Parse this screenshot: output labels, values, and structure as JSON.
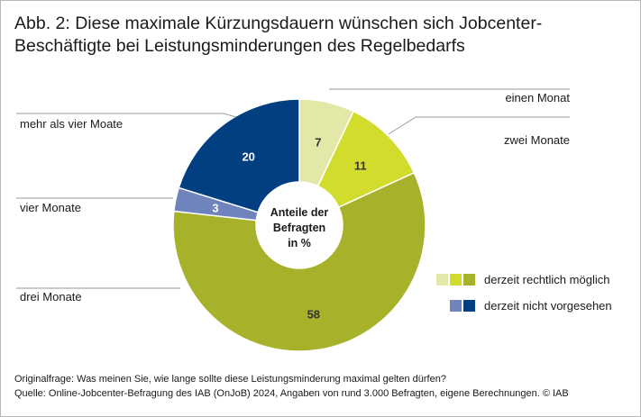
{
  "header": {
    "title_line1": "Abb. 2: Diese maximale Kürzungsdauern wünschen sich Jobcenter-",
    "title_line2": "Beschäftigte bei Leistungsminderungen des Regelbedarfs"
  },
  "chart_data": {
    "type": "pie",
    "variant": "donut",
    "center_label": [
      "Anteile der",
      "Befragten",
      "in %"
    ],
    "slices": [
      {
        "label": "einen Monat",
        "value": 7,
        "value_label": "7",
        "group": "derzeit rechtlich möglich",
        "color": "#e3e8a8",
        "value_color": "#333333"
      },
      {
        "label": "zwei Monate",
        "value": 11,
        "value_label": "11",
        "group": "derzeit rechtlich möglich",
        "color": "#d2dc2d",
        "value_color": "#333333"
      },
      {
        "label": "drei Monate",
        "value": 58,
        "value_label": "58",
        "group": "derzeit rechtlich möglich",
        "color": "#a7b12a",
        "value_color": "#333333"
      },
      {
        "label": "vier Monate",
        "value": 3,
        "value_label": "3",
        "group": "derzeit nicht vorgesehen",
        "color": "#6f84bd",
        "value_color": "#ffffff"
      },
      {
        "label": "mehr als vier Moate",
        "value": 20,
        "value_label": "20",
        "group": "derzeit nicht vorgesehen",
        "color": "#023f80",
        "value_color": "#ffffff"
      }
    ],
    "legend": [
      {
        "label": "derzeit rechtlich möglich",
        "colors": [
          "#e3e8a8",
          "#d2dc2d",
          "#a7b12a"
        ]
      },
      {
        "label": "derzeit nicht vorgesehen",
        "colors": [
          "#6f84bd",
          "#023f80"
        ]
      }
    ],
    "legend_position": "right"
  },
  "footer": {
    "question": "Originalfrage: Was meinen Sie, wie lange sollte diese Leistungsminderung maximal gelten dürfen?",
    "source": "Quelle: Online-Jobcenter-Befragung des IAB (OnJoB) 2024, Angaben von rund 3.000 Befragten, eigene Berechnungen. © IAB"
  }
}
